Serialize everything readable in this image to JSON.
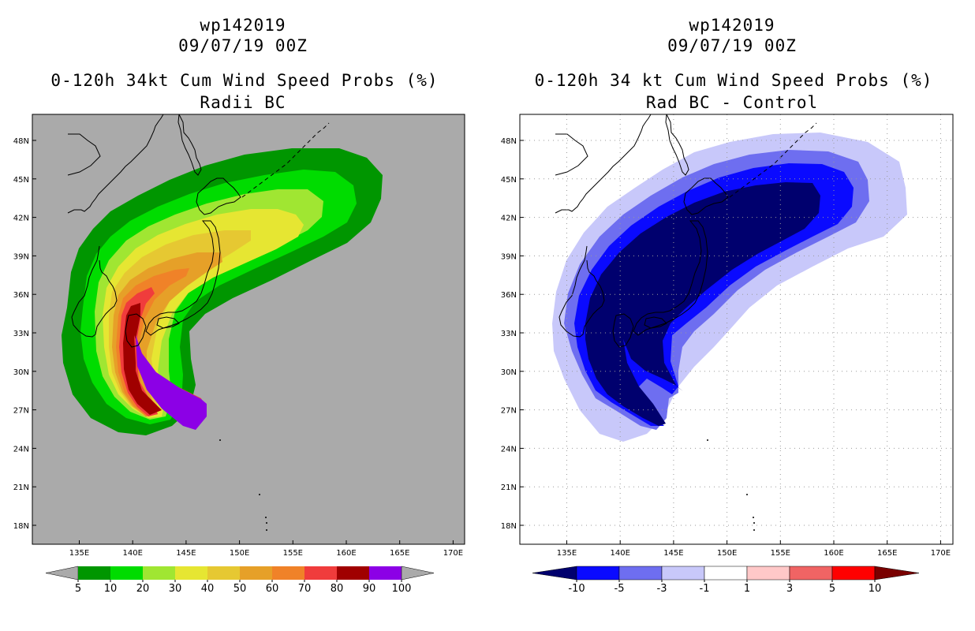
{
  "left_panel": {
    "storm_id": "wp142019",
    "datetime": "09/07/19 00Z",
    "title": "0-120h 34kt Cum Wind Speed Probs (%)",
    "subtitle": "Radii BC",
    "background_color": "#aaaaaa",
    "colorbar": {
      "labels": [
        "5",
        "10",
        "20",
        "30",
        "40",
        "50",
        "60",
        "70",
        "80",
        "90",
        "100"
      ],
      "colors": [
        "#009600",
        "#00dc00",
        "#a0e632",
        "#e6e632",
        "#e6c832",
        "#e6a028",
        "#f08228",
        "#f03c3c",
        "#a00000",
        "#8c00e6"
      ],
      "end_color": "#aaaaaa"
    }
  },
  "right_panel": {
    "storm_id": "wp142019",
    "datetime": "09/07/19 00Z",
    "title": "0-120h 34 kt Cum Wind Speed Probs (%)",
    "subtitle": "Rad BC - Control",
    "background_color": "#ffffff",
    "colorbar": {
      "labels": [
        "-10",
        "-5",
        "-3",
        "-1",
        "1",
        "3",
        "5",
        "10"
      ],
      "colors": [
        "#00006e",
        "#0a0aff",
        "#6e6ef0",
        "#c8c8fa",
        "#ffffff",
        "#ffc8c8",
        "#f06464",
        "#ff0000",
        "#7a0000"
      ],
      "start_color": "#00006e",
      "end_color": "#7a0000"
    }
  },
  "map": {
    "lon_labels": [
      "135E",
      "140E",
      "145E",
      "150E",
      "155E",
      "160E",
      "165E",
      "170E"
    ],
    "lat_labels": [
      "48N",
      "45N",
      "42N",
      "39N",
      "36N",
      "33N",
      "30N",
      "27N",
      "24N",
      "21N",
      "18N"
    ]
  }
}
